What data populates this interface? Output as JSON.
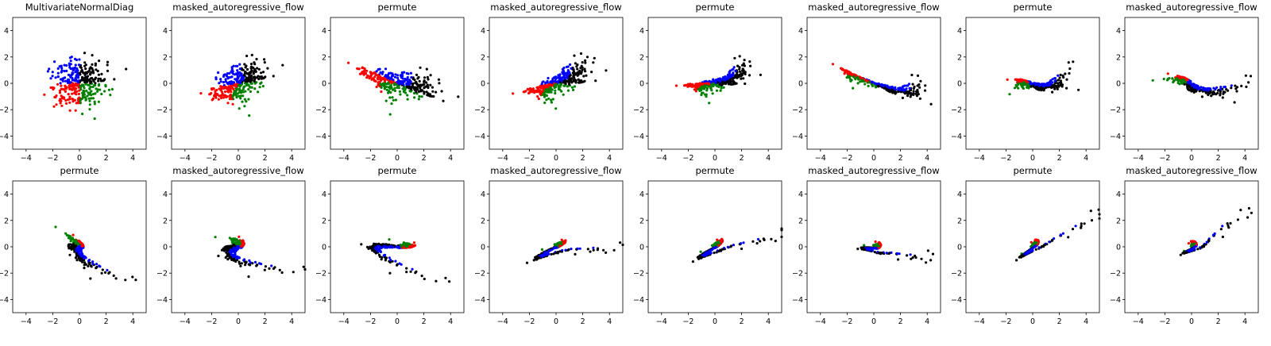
{
  "figure": {
    "quadrant_colors": {
      "upper_left": "#0000ff",
      "upper_right": "#000000",
      "lower_left": "#ff0000",
      "lower_right": "#008000"
    }
  },
  "chart_data": [
    {
      "type": "scatter",
      "title": "MultivariateNormalDiag",
      "shape": "gaussian",
      "xlim": [
        -5,
        5
      ],
      "ylim": [
        -5,
        5
      ],
      "xticks": [
        "-4",
        "-2",
        "0",
        "2",
        "4"
      ],
      "yticks": [
        "-4",
        "-2",
        "0",
        "2",
        "4"
      ],
      "grid": false,
      "legend": "none"
    },
    {
      "type": "scatter",
      "title": "masked_autoregressive_flow",
      "shape": "warped transform",
      "xlim": [
        -5,
        5
      ],
      "ylim": [
        -5,
        5
      ],
      "xticks": [
        "-4",
        "-2",
        "0",
        "2",
        "4"
      ],
      "yticks": [
        "-4",
        "-2",
        "0",
        "2",
        "4"
      ],
      "grid": false,
      "legend": "none"
    },
    {
      "type": "scatter",
      "title": "permute",
      "shape": "warped transform",
      "xlim": [
        -5,
        5
      ],
      "ylim": [
        -5,
        5
      ],
      "xticks": [
        "-4",
        "-2",
        "0",
        "2",
        "4"
      ],
      "yticks": [
        "-4",
        "-2",
        "0",
        "2",
        "4"
      ],
      "grid": false,
      "legend": "none"
    },
    {
      "type": "scatter",
      "title": "masked_autoregressive_flow",
      "shape": "warped transform",
      "xlim": [
        -5,
        5
      ],
      "ylim": [
        -5,
        5
      ],
      "xticks": [
        "-4",
        "-2",
        "0",
        "2",
        "4"
      ],
      "yticks": [
        "-4",
        "-2",
        "0",
        "2",
        "4"
      ],
      "grid": false,
      "legend": "none"
    },
    {
      "type": "scatter",
      "title": "permute",
      "shape": "warped transform",
      "xlim": [
        -5,
        5
      ],
      "ylim": [
        -5,
        5
      ],
      "xticks": [
        "-4",
        "-2",
        "0",
        "2",
        "4"
      ],
      "yticks": [
        "-4",
        "-2",
        "0",
        "2",
        "4"
      ],
      "grid": false,
      "legend": "none"
    },
    {
      "type": "scatter",
      "title": "masked_autoregressive_flow",
      "shape": "warped transform",
      "xlim": [
        -5,
        5
      ],
      "ylim": [
        -5,
        5
      ],
      "xticks": [
        "-4",
        "-2",
        "0",
        "2",
        "4"
      ],
      "yticks": [
        "-4",
        "-2",
        "0",
        "2",
        "4"
      ],
      "grid": false,
      "legend": "none"
    },
    {
      "type": "scatter",
      "title": "permute",
      "shape": "warped transform",
      "xlim": [
        -5,
        5
      ],
      "ylim": [
        -5,
        5
      ],
      "xticks": [
        "-4",
        "-2",
        "0",
        "2",
        "4"
      ],
      "yticks": [
        "-4",
        "-2",
        "0",
        "2",
        "4"
      ],
      "grid": false,
      "legend": "none"
    },
    {
      "type": "scatter",
      "title": "masked_autoregressive_flow",
      "shape": "warped transform",
      "xlim": [
        -5,
        5
      ],
      "ylim": [
        -5,
        5
      ],
      "xticks": [
        "-4",
        "-2",
        "0",
        "2",
        "4"
      ],
      "yticks": [
        "-4",
        "-2",
        "0",
        "2",
        "4"
      ],
      "grid": false,
      "legend": "none"
    },
    {
      "type": "scatter",
      "title": "permute",
      "shape": "warped transform",
      "xlim": [
        -5,
        5
      ],
      "ylim": [
        -5,
        5
      ],
      "xticks": [
        "-4",
        "-2",
        "0",
        "2",
        "4"
      ],
      "yticks": [
        "-4",
        "-2",
        "0",
        "2",
        "4"
      ],
      "grid": false,
      "legend": "none"
    },
    {
      "type": "scatter",
      "title": "masked_autoregressive_flow",
      "shape": "warped transform",
      "xlim": [
        -5,
        5
      ],
      "ylim": [
        -5,
        5
      ],
      "xticks": [
        "-4",
        "-2",
        "0",
        "2",
        "4"
      ],
      "yticks": [
        "-4",
        "-2",
        "0",
        "2",
        "4"
      ],
      "grid": false,
      "legend": "none"
    },
    {
      "type": "scatter",
      "title": "permute",
      "shape": "warped transform",
      "xlim": [
        -5,
        5
      ],
      "ylim": [
        -5,
        5
      ],
      "xticks": [
        "-4",
        "-2",
        "0",
        "2",
        "4"
      ],
      "yticks": [
        "-4",
        "-2",
        "0",
        "2",
        "4"
      ],
      "grid": false,
      "legend": "none"
    },
    {
      "type": "scatter",
      "title": "masked_autoregressive_flow",
      "shape": "warped transform",
      "xlim": [
        -5,
        5
      ],
      "ylim": [
        -5,
        5
      ],
      "xticks": [
        "-4",
        "-2",
        "0",
        "2",
        "4"
      ],
      "yticks": [
        "-4",
        "-2",
        "0",
        "2",
        "4"
      ],
      "grid": false,
      "legend": "none"
    },
    {
      "type": "scatter",
      "title": "permute",
      "shape": "warped transform",
      "xlim": [
        -5,
        5
      ],
      "ylim": [
        -5,
        5
      ],
      "xticks": [
        "-4",
        "-2",
        "0",
        "2",
        "4"
      ],
      "yticks": [
        "-4",
        "-2",
        "0",
        "2",
        "4"
      ],
      "grid": false,
      "legend": "none"
    },
    {
      "type": "scatter",
      "title": "masked_autoregressive_flow",
      "shape": "warped transform",
      "xlim": [
        -5,
        5
      ],
      "ylim": [
        -5,
        5
      ],
      "xticks": [
        "-4",
        "-2",
        "0",
        "2",
        "4"
      ],
      "yticks": [
        "-4",
        "-2",
        "0",
        "2",
        "4"
      ],
      "grid": false,
      "legend": "none"
    },
    {
      "type": "scatter",
      "title": "permute",
      "shape": "warped transform",
      "xlim": [
        -5,
        5
      ],
      "ylim": [
        -5,
        5
      ],
      "xticks": [
        "-4",
        "-2",
        "0",
        "2",
        "4"
      ],
      "yticks": [
        "-4",
        "-2",
        "0",
        "2",
        "4"
      ],
      "grid": false,
      "legend": "none"
    },
    {
      "type": "scatter",
      "title": "masked_autoregressive_flow",
      "shape": "warped transform",
      "xlim": [
        -5,
        5
      ],
      "ylim": [
        -5,
        5
      ],
      "xticks": [
        "-4",
        "-2",
        "0",
        "2",
        "4"
      ],
      "yticks": [
        "-4",
        "-2",
        "0",
        "2",
        "4"
      ],
      "grid": false,
      "legend": "none"
    }
  ]
}
